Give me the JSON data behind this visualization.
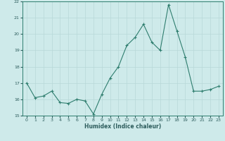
{
  "x": [
    0,
    1,
    2,
    3,
    4,
    5,
    6,
    7,
    8,
    9,
    10,
    11,
    12,
    13,
    14,
    15,
    16,
    17,
    18,
    19,
    20,
    21,
    22,
    23
  ],
  "y": [
    17.0,
    16.1,
    16.2,
    16.5,
    15.8,
    15.75,
    16.0,
    15.9,
    15.1,
    16.3,
    17.3,
    18.0,
    19.3,
    19.8,
    20.6,
    19.5,
    19.0,
    21.8,
    20.2,
    18.6,
    16.5,
    16.5,
    16.6,
    16.8
  ],
  "xlabel": "Humidex (Indice chaleur)",
  "ylim": [
    15,
    22
  ],
  "yticks": [
    15,
    16,
    17,
    18,
    19,
    20,
    21,
    22
  ],
  "xticks": [
    0,
    1,
    2,
    3,
    4,
    5,
    6,
    7,
    8,
    9,
    10,
    11,
    12,
    13,
    14,
    15,
    16,
    17,
    18,
    19,
    20,
    21,
    22,
    23
  ],
  "line_color": "#2e7d6e",
  "marker_color": "#2e7d6e",
  "bg_color": "#ceeaea",
  "grid_color": "#b8d8d8",
  "axes_color": "#2e7d6e",
  "tick_label_color": "#2e5d5d",
  "xlabel_color": "#2e5d5d",
  "figsize": [
    3.2,
    2.0
  ],
  "dpi": 100
}
